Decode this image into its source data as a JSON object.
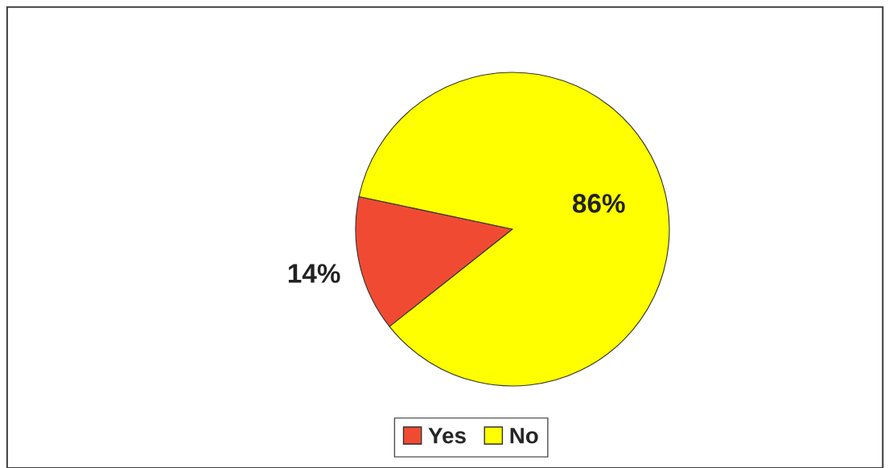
{
  "chart_data": {
    "type": "pie",
    "categories": [
      "Yes",
      "No"
    ],
    "values": [
      14,
      86
    ],
    "colors": [
      "#f04b32",
      "#ffff00"
    ],
    "value_labels": [
      "14%",
      "86%"
    ],
    "legend": "bottom"
  }
}
